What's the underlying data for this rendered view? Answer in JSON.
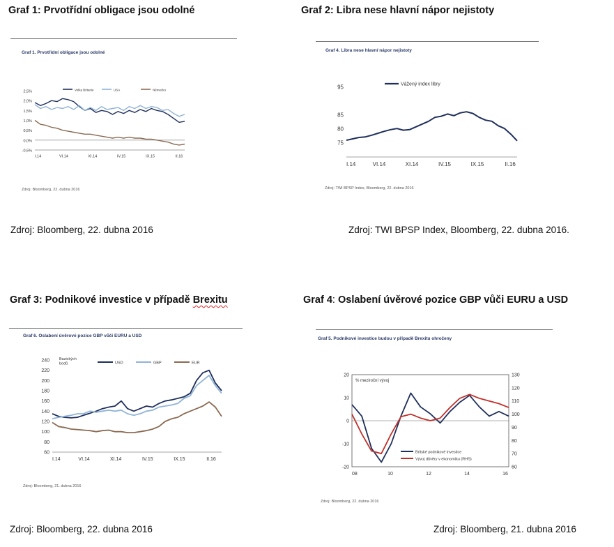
{
  "headings": {
    "g1": "Graf 1: Prvotřídní obligace jsou odolné",
    "g2": "Graf 2: Libra nese hlavní nápor nejistoty",
    "g3_main": "Graf 3: Podnikové investice v případě ",
    "g3_tail": "Brexitu",
    "g4_a": "Graf 4",
    "g4_b": ": ",
    "g4_c": "Oslabení úvěrové pozice GBP vůči  EURU a USD"
  },
  "sources": {
    "s1": "Zdroj: Bloomberg, 22. dubna 2016",
    "s2": "Zdroj: TWI BPSP Index, Bloomberg, 22. dubna 2016.",
    "s3": "Zdroj: Bloomberg, 22. dubna 2016",
    "s4": "Zdroj: Bloomberg, 21. dubna 2016"
  },
  "colors": {
    "navy": "#1f2f5c",
    "lightblue": "#8fb3d6",
    "brown": "#8a6a52",
    "red": "#c0302a",
    "title": "#2b3a6b"
  },
  "chart_data": [
    {
      "id": "c1",
      "type": "line",
      "title": "Graf 1. Prvotřídní obligace jsou odolné",
      "source": "Zdroj: Bloomberg, 22. dubna 2016",
      "x_ticks": [
        "I.14",
        "VI.14",
        "XI.14",
        "IV.15",
        "IX.15",
        "II.16"
      ],
      "y_ticks": [
        "2,5%",
        "2,0%",
        "1,5%",
        "1,0%",
        "0,5%",
        "0,0%",
        "-0,5%"
      ],
      "ylim": [
        -0.5,
        2.5
      ],
      "x": [
        0,
        1,
        2,
        3,
        4,
        5,
        6,
        7,
        8,
        9,
        10,
        11,
        12,
        13,
        14,
        15,
        16,
        17,
        18,
        19,
        20,
        21,
        22,
        23,
        24,
        25,
        26,
        27
      ],
      "series": [
        {
          "name": "Velka Britanie",
          "color": "#1f2f5c",
          "values": [
            1.9,
            1.75,
            1.85,
            2.0,
            1.95,
            2.1,
            2.05,
            1.95,
            1.7,
            1.5,
            1.6,
            1.4,
            1.5,
            1.45,
            1.3,
            1.45,
            1.35,
            1.5,
            1.4,
            1.55,
            1.45,
            1.6,
            1.5,
            1.45,
            1.3,
            1.1,
            0.9,
            0.95
          ]
        },
        {
          "name": "USA",
          "color": "#8fb3d6",
          "values": [
            1.8,
            1.6,
            1.7,
            1.55,
            1.65,
            1.6,
            1.7,
            1.55,
            1.75,
            1.5,
            1.65,
            1.5,
            1.7,
            1.55,
            1.6,
            1.65,
            1.5,
            1.7,
            1.6,
            1.75,
            1.6,
            1.7,
            1.65,
            1.5,
            1.55,
            1.35,
            1.2,
            1.3
          ]
        },
        {
          "name": "Německo",
          "color": "#8a6a52",
          "values": [
            1.0,
            0.8,
            0.75,
            0.65,
            0.6,
            0.5,
            0.45,
            0.4,
            0.35,
            0.3,
            0.3,
            0.25,
            0.2,
            0.15,
            0.1,
            0.15,
            0.1,
            0.15,
            0.1,
            0.1,
            0.05,
            0.05,
            0.0,
            -0.05,
            -0.1,
            -0.2,
            -0.25,
            -0.2
          ]
        }
      ]
    },
    {
      "id": "c2",
      "type": "line",
      "title": "Graf 4. Libra nese hlavní nápor nejistoty",
      "source": "Zdroj: TWI BPSP Index, Bloomberg, 22. dubna 2016",
      "x_ticks": [
        "I.14",
        "VI.14",
        "XI.14",
        "IV.15",
        "IX.15",
        "II.16"
      ],
      "y_ticks": [
        "95",
        "85",
        "80",
        "75"
      ],
      "ylim": [
        70,
        95
      ],
      "x": [
        0,
        1,
        2,
        3,
        4,
        5,
        6,
        7,
        8,
        9,
        10,
        11,
        12,
        13,
        14,
        15,
        16,
        17,
        18,
        19,
        20,
        21,
        22,
        23,
        24,
        25,
        26,
        27
      ],
      "series": [
        {
          "name": "Vážený index libry",
          "color": "#1f2f5c",
          "values": [
            76,
            76.5,
            77,
            77.2,
            77.8,
            78.5,
            79.2,
            79.8,
            80.2,
            79.6,
            79.8,
            80.8,
            81.8,
            82.8,
            84.2,
            84.6,
            85.4,
            84.8,
            85.8,
            86.2,
            85.6,
            84.2,
            83.2,
            82.8,
            81.2,
            80.2,
            78.2,
            75.8
          ]
        }
      ]
    },
    {
      "id": "c3",
      "type": "line",
      "title": "Graf 6. Oslabení úvěrové pozice GBP vůči EURU a USD",
      "source": "Zdroj: Bloomberg, 21. dubna 2016",
      "ylabel": "Bazických bodů",
      "x_ticks": [
        "I.14",
        "VI.14",
        "XI.14",
        "IV.15",
        "IX.15",
        "II.16"
      ],
      "y_ticks": [
        "240",
        "220",
        "200",
        "180",
        "160",
        "140",
        "120",
        "100",
        "80",
        "60"
      ],
      "ylim": [
        60,
        240
      ],
      "x": [
        0,
        1,
        2,
        3,
        4,
        5,
        6,
        7,
        8,
        9,
        10,
        11,
        12,
        13,
        14,
        15,
        16,
        17,
        18,
        19,
        20,
        21,
        22,
        23,
        24,
        25,
        26,
        27
      ],
      "series": [
        {
          "name": "USD",
          "color": "#1f2f5c",
          "values": [
            135,
            130,
            128,
            127,
            128,
            132,
            136,
            140,
            145,
            148,
            150,
            160,
            145,
            140,
            145,
            150,
            148,
            155,
            160,
            162,
            165,
            168,
            175,
            200,
            215,
            220,
            195,
            180
          ]
        },
        {
          "name": "GBP",
          "color": "#8fb3d6",
          "values": [
            125,
            128,
            130,
            132,
            135,
            135,
            140,
            138,
            140,
            142,
            140,
            142,
            135,
            132,
            135,
            140,
            142,
            148,
            150,
            152,
            155,
            165,
            170,
            190,
            200,
            210,
            190,
            175
          ]
        },
        {
          "name": "EUR",
          "color": "#8a6a52",
          "values": [
            118,
            110,
            108,
            105,
            104,
            103,
            102,
            100,
            102,
            103,
            100,
            100,
            98,
            98,
            100,
            102,
            105,
            110,
            120,
            125,
            128,
            135,
            140,
            145,
            150,
            158,
            148,
            130
          ]
        }
      ]
    },
    {
      "id": "c4",
      "type": "line",
      "title": "Graf 5. Podnikové investice budou v případě Brexitu ohroženy",
      "source": "Zdroj: Bloomberg, 22. dubna 2016",
      "ylabel": "% meziroční vývoj",
      "x_ticks": [
        "08",
        "10",
        "12",
        "14",
        "16"
      ],
      "y_ticks_left": [
        "20",
        "10",
        "0",
        "-10",
        "-20"
      ],
      "y_ticks_right": [
        "130",
        "120",
        "110",
        "100",
        "90",
        "80",
        "70",
        "60"
      ],
      "ylim": [
        -20,
        20
      ],
      "ylim_right": [
        60,
        130
      ],
      "x": [
        2008,
        2008.5,
        2009,
        2009.5,
        2010,
        2010.5,
        2011,
        2011.5,
        2012,
        2012.5,
        2013,
        2013.5,
        2014,
        2014.5,
        2015,
        2015.5,
        2016
      ],
      "series": [
        {
          "name": "Britské podnikové investice",
          "color": "#1f2f5c",
          "axis": "left",
          "values": [
            7,
            2,
            -12,
            -18,
            -10,
            2,
            12,
            6,
            3,
            -1,
            4,
            8,
            11,
            6,
            2,
            4,
            2
          ]
        },
        {
          "name": "Vývoj důvěry v ekonomiku (RHS)",
          "color": "#c0302a",
          "axis": "right",
          "values": [
            100,
            85,
            72,
            70,
            85,
            98,
            100,
            97,
            95,
            97,
            105,
            112,
            115,
            112,
            110,
            108,
            105
          ]
        }
      ]
    }
  ]
}
